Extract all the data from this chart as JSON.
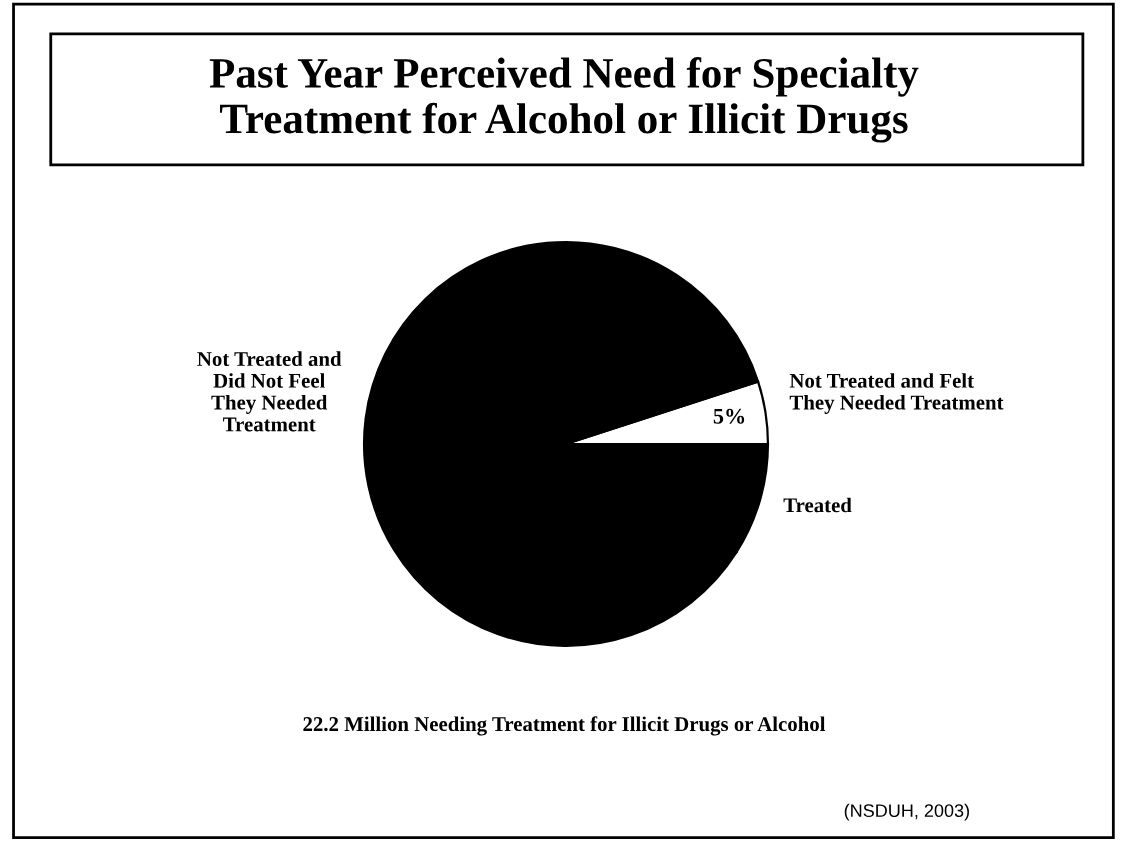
{
  "chart_data": {
    "type": "pie",
    "title": "Past Year Perceived Need for Specialty\nTreatment for Alcohol or Illicit Drugs",
    "categories": [
      "Not Treated and Felt\nThey Needed Treatment",
      "Not Treated and\nDid Not Feel\nThey Needed\nTreatment",
      "Treated"
    ],
    "values": [
      5,
      86,
      9
    ],
    "colors": [
      "#ffffff",
      "#000000",
      "#000000"
    ],
    "value_labels": [
      "5%",
      null,
      null
    ],
    "annotations": [
      "22.2 Million Needing Treatment for Illicit Drugs or Alcohol",
      "(NSDUH, 2003)"
    ]
  }
}
